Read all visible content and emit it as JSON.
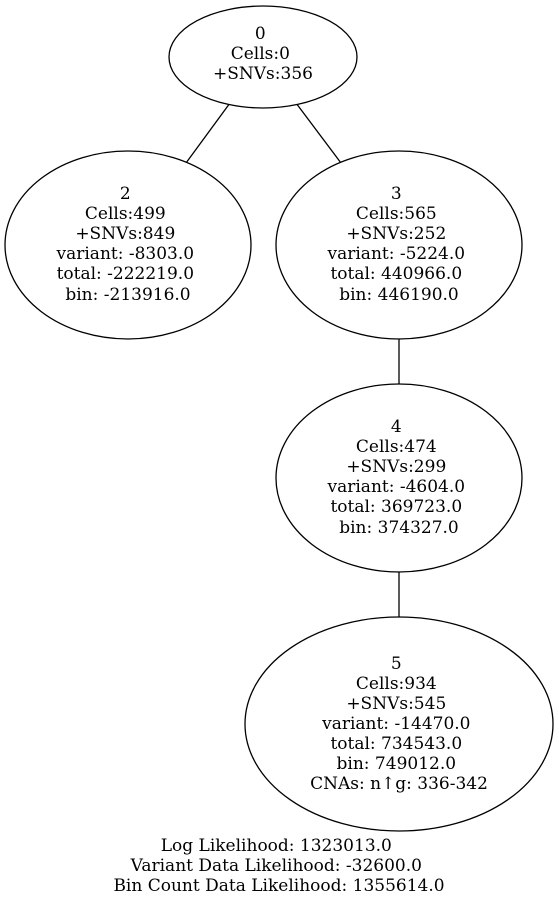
{
  "nodes": [
    {
      "id": "0",
      "lines": [
        "0",
        "Cells:0",
        "+SNVs:356"
      ]
    },
    {
      "id": "2",
      "lines": [
        "2",
        "Cells:499",
        "+SNVs:849",
        "variant: -8303.0",
        "total: -222219.0",
        "bin: -213916.0"
      ]
    },
    {
      "id": "3",
      "lines": [
        "3",
        "Cells:565",
        "+SNVs:252",
        "variant: -5224.0",
        "total: 440966.0",
        "bin: 446190.0"
      ]
    },
    {
      "id": "4",
      "lines": [
        "4",
        "Cells:474",
        "+SNVs:299",
        "variant: -4604.0",
        "total: 369723.0",
        "bin: 374327.0"
      ]
    },
    {
      "id": "5",
      "lines": [
        "5",
        "Cells:934",
        "+SNVs:545",
        "variant: -14470.0",
        "total: 734543.0",
        "bin: 749012.0",
        "CNAs: n↑g: 336-342"
      ]
    }
  ],
  "edges": [
    {
      "from": "0",
      "to": "2"
    },
    {
      "from": "0",
      "to": "3"
    },
    {
      "from": "3",
      "to": "4"
    },
    {
      "from": "4",
      "to": "5"
    }
  ],
  "footer": {
    "log_likelihood": "Log Likelihood: 1323013.0",
    "variant_likelihood": "Variant Data Likelihood: -32600.0",
    "bin_likelihood": "Bin Count Data Likelihood: 1355614.0"
  }
}
